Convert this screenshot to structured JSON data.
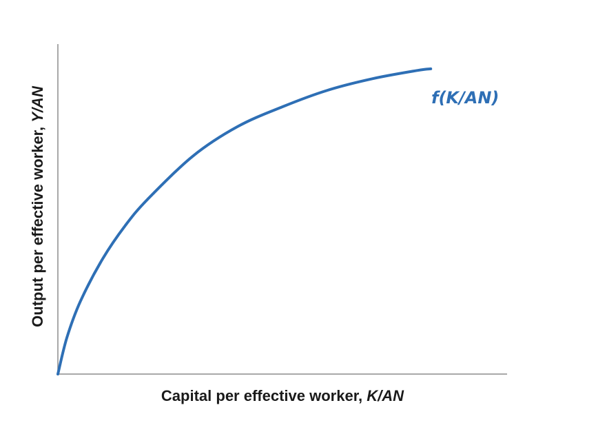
{
  "chart_data": {
    "type": "line",
    "title": "",
    "xlabel": {
      "text": "Capital per effective worker,",
      "symbol": "K/AN"
    },
    "ylabel": {
      "text": "Output per effective worker,",
      "symbol": "Y/AN"
    },
    "xlim": [
      0,
      10
    ],
    "ylim": [
      0,
      10
    ],
    "grid": false,
    "ticks": false,
    "series": [
      {
        "name": "f(K/AN)",
        "color": "#2e6fb5",
        "shape": "concave",
        "x": [
          0,
          0.2,
          0.5,
          1,
          1.5,
          2,
          3,
          4,
          5,
          6,
          7,
          8,
          8.3
        ],
        "y": [
          0,
          1.1,
          2.2,
          3.5,
          4.5,
          5.3,
          6.6,
          7.5,
          8.1,
          8.6,
          8.95,
          9.2,
          9.25
        ]
      }
    ]
  }
}
